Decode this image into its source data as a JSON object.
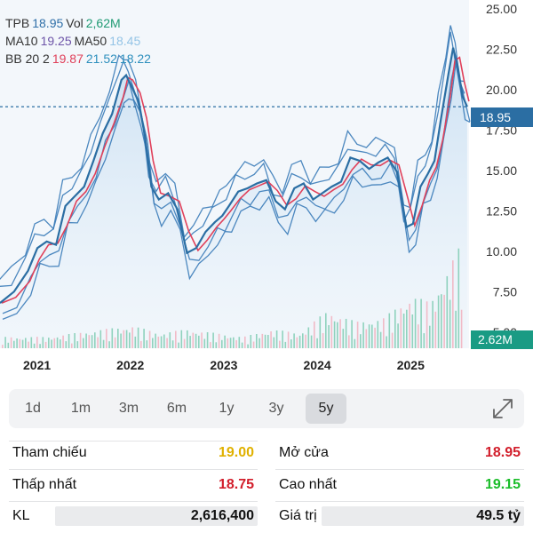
{
  "legend": {
    "ticker": "TPB",
    "price": "18.95",
    "vol_label": "Vol",
    "vol": "2,62M",
    "ma10_label": "MA10",
    "ma10": "19.25",
    "ma50_label": "MA50",
    "ma50": "18.45",
    "bb_label": "BB 20 2",
    "bb_mid": "19.87",
    "bb_upper": "21.52",
    "bb_lower": "18.22"
  },
  "price_tag": "18.95",
  "volume_tag": "2.62M",
  "colors": {
    "price_line": "#2b6ea3",
    "area_fill": "#c9dff2",
    "ma10": "#e0405a",
    "bands": "#3a7bb8",
    "vol_up": "#6fc5a8",
    "vol_down": "#f2a7b5",
    "tag_price": "#2b6ea3",
    "tag_volume": "#1a9b84"
  },
  "chart_data": {
    "type": "line",
    "title": "",
    "x_labels": [
      "2021",
      "2022",
      "2023",
      "2024",
      "2025"
    ],
    "y_ticks": [
      "25.00",
      "22.50",
      "20.00",
      "17.50",
      "15.00",
      "12.50",
      "10.00",
      "7.50",
      "5.00"
    ],
    "ylim": [
      4.0,
      25.0
    ],
    "reference_line": 18.95,
    "grid": false,
    "series": [
      {
        "name": "TPB",
        "x": [
          2020.7,
          2020.85,
          2021.0,
          2021.1,
          2021.2,
          2021.3,
          2021.4,
          2021.5,
          2021.6,
          2021.7,
          2021.8,
          2021.9,
          2022.0,
          2022.05,
          2022.1,
          2022.18,
          2022.25,
          2022.32,
          2022.4,
          2022.5,
          2022.6,
          2022.7,
          2022.8,
          2022.9,
          2023.0,
          2023.08,
          2023.15,
          2023.25,
          2023.35,
          2023.45,
          2023.55,
          2023.65,
          2023.75,
          2023.85,
          2023.95,
          2024.05,
          2024.15,
          2024.25,
          2024.35,
          2024.45,
          2024.55,
          2024.65,
          2024.75,
          2024.85,
          2024.95,
          2025.05,
          2025.12,
          2025.2,
          2025.28,
          2025.35,
          2025.42,
          2025.5,
          2025.55,
          2025.6,
          2025.65,
          2025.7
        ],
        "values": [
          6.8,
          7.5,
          8.8,
          10.2,
          10.6,
          10.4,
          12.8,
          13.4,
          14.0,
          15.6,
          17.3,
          18.5,
          20.6,
          20.9,
          20.3,
          19.3,
          17.2,
          14.0,
          13.2,
          13.6,
          12.6,
          9.9,
          10.2,
          11.2,
          11.8,
          12.2,
          12.8,
          13.7,
          13.9,
          14.2,
          14.4,
          13.1,
          12.6,
          13.9,
          14.2,
          13.2,
          13.6,
          14.0,
          14.3,
          15.8,
          15.6,
          15.1,
          15.5,
          15.8,
          14.9,
          11.5,
          11.7,
          14.0,
          14.8,
          15.6,
          18.2,
          21.0,
          22.6,
          21.4,
          19.6,
          18.95
        ]
      },
      {
        "name": "Vol",
        "x": [
          2021.2,
          2021.5,
          2021.8,
          2022.1,
          2022.4,
          2022.7,
          2023.0,
          2023.3,
          2023.6,
          2023.9,
          2024.2,
          2024.5,
          2024.8,
          2025.1,
          2025.3,
          2025.5,
          2025.6
        ],
        "values": [
          0.3,
          0.4,
          0.5,
          0.6,
          0.4,
          0.5,
          0.4,
          0.3,
          0.5,
          0.4,
          1.0,
          0.7,
          0.8,
          1.4,
          1.2,
          2.2,
          2.62
        ]
      }
    ]
  },
  "timeframes": [
    "1d",
    "1m",
    "3m",
    "6m",
    "1y",
    "3y",
    "5y"
  ],
  "active_timeframe": "5y",
  "stats": {
    "ref_label": "Tham chiếu",
    "ref_value": "19.00",
    "open_label": "Mở cửa",
    "open_value": "18.95",
    "low_label": "Thấp nhất",
    "low_value": "18.75",
    "high_label": "Cao nhất",
    "high_value": "19.15",
    "vol_label": "KL",
    "vol_value": "2,616,400",
    "value_label": "Giá trị",
    "value_value": "49.5 tỷ"
  }
}
